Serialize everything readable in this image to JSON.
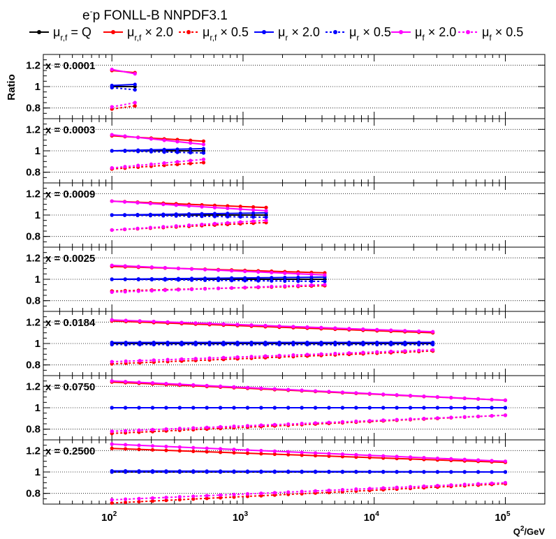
{
  "chart_data": {
    "type": "line",
    "title": "e",
    "title_sup": "-",
    "title_rest": "p FONLL-B NNPDF3.1",
    "ylabel": "Ratio",
    "xlabel": "Q",
    "xlabel_sup": "2",
    "xlabel_rest": "/GeV",
    "xscale": "log",
    "xlim": [
      30,
      200000
    ],
    "ylim": [
      0.7,
      1.3
    ],
    "grid": "y-dotted",
    "legend_position": "top",
    "x_ticks": [
      {
        "base": "10",
        "exp": "2",
        "value": 100
      },
      {
        "base": "10",
        "exp": "3",
        "value": 1000
      },
      {
        "base": "10",
        "exp": "4",
        "value": 10000
      },
      {
        "base": "10",
        "exp": "5",
        "value": 100000
      }
    ],
    "y_ticks": [
      {
        "label": "0.8",
        "value": 0.8
      },
      {
        "label": "1",
        "value": 1.0
      },
      {
        "label": "1.2",
        "value": 1.2
      }
    ],
    "legend": [
      {
        "sym": "μ",
        "sub": "r,f",
        "text": " = Q",
        "color": "#000000",
        "dash": "solid"
      },
      {
        "sym": "μ",
        "sub": "r,f",
        "text": " × 2.0",
        "color": "#ff0000",
        "dash": "solid"
      },
      {
        "sym": "μ",
        "sub": "r,f",
        "text": " × 0.5",
        "color": "#ff0000",
        "dash": "dotted"
      },
      {
        "sym": "μ",
        "sub": "r",
        "text": " × 2.0",
        "color": "#0000ff",
        "dash": "solid"
      },
      {
        "sym": "μ",
        "sub": "r",
        "text": " × 0.5",
        "color": "#0000ff",
        "dash": "dotted"
      },
      {
        "sym": "μ",
        "sub": "f",
        "text": " × 2.0",
        "color": "#ff00ff",
        "dash": "solid"
      },
      {
        "sym": "μ",
        "sub": "f",
        "text": " × 0.5",
        "color": "#ff00ff",
        "dash": "dotted"
      }
    ],
    "panels": [
      {
        "label": "x = 0.0001",
        "x_min": 100,
        "x_max": 150,
        "n_points": 2,
        "curves": {
          "central": [
            1.0,
            1.0
          ],
          "rf_x2": [
            1.15,
            1.13
          ],
          "rf_x05": [
            0.79,
            0.82
          ],
          "r_x2": [
            1.01,
            1.02
          ],
          "r_x05": [
            0.99,
            0.97
          ],
          "f_x2": [
            1.16,
            1.12
          ],
          "f_x05": [
            0.81,
            0.85
          ]
        }
      },
      {
        "label": "x = 0.0003",
        "x_min": 100,
        "x_max": 500,
        "n_points": 8,
        "curves": {
          "central": [
            1.0,
            1.0
          ],
          "rf_x2": [
            1.14,
            1.09
          ],
          "rf_x05": [
            0.83,
            0.89
          ],
          "r_x2": [
            1.0,
            1.02
          ],
          "r_x05": [
            1.0,
            0.98
          ],
          "f_x2": [
            1.15,
            1.06
          ],
          "f_x05": [
            0.84,
            0.92
          ]
        }
      },
      {
        "label": "x = 0.0009",
        "x_min": 100,
        "x_max": 1500,
        "n_points": 13,
        "curves": {
          "central": [
            1.0,
            1.0
          ],
          "rf_x2": [
            1.13,
            1.07
          ],
          "rf_x05": [
            0.86,
            0.93
          ],
          "r_x2": [
            1.0,
            1.02
          ],
          "r_x05": [
            1.0,
            0.98
          ],
          "f_x2": [
            1.13,
            1.04
          ],
          "f_x05": [
            0.86,
            0.95
          ]
        }
      },
      {
        "label": "x = 0.0025",
        "x_min": 100,
        "x_max": 4200,
        "n_points": 17,
        "curves": {
          "central": [
            1.0,
            1.0
          ],
          "rf_x2": [
            1.12,
            1.06
          ],
          "rf_x05": [
            0.89,
            0.94
          ],
          "r_x2": [
            1.0,
            1.02
          ],
          "r_x05": [
            1.0,
            0.98
          ],
          "f_x2": [
            1.13,
            1.04
          ],
          "f_x05": [
            0.88,
            0.95
          ]
        }
      },
      {
        "label": "x = 0.0184",
        "x_min": 100,
        "x_max": 28000,
        "n_points": 24,
        "curves": {
          "central": [
            1.0,
            1.0
          ],
          "rf_x2": [
            1.21,
            1.1
          ],
          "rf_x05": [
            0.81,
            0.93
          ],
          "r_x2": [
            1.01,
            1.01
          ],
          "r_x05": [
            0.99,
            0.99
          ],
          "f_x2": [
            1.22,
            1.11
          ],
          "f_x05": [
            0.83,
            0.94
          ]
        }
      },
      {
        "label": "x = 0.0750",
        "x_min": 100,
        "x_max": 100000,
        "n_points": 30,
        "curves": {
          "central": [
            1.0,
            1.0
          ],
          "rf_x2": [
            1.24,
            1.07
          ],
          "rf_x05": [
            0.76,
            0.93
          ],
          "r_x2": [
            1.0,
            1.0
          ],
          "r_x05": [
            1.0,
            1.0
          ],
          "f_x2": [
            1.25,
            1.07
          ],
          "f_x05": [
            0.78,
            0.93
          ]
        }
      },
      {
        "label": "x = 0.2500",
        "x_min": 100,
        "x_max": 100000,
        "n_points": 30,
        "curves": {
          "central": [
            1.0,
            1.0
          ],
          "rf_x2": [
            1.22,
            1.09
          ],
          "rf_x05": [
            0.71,
            0.89
          ],
          "r_x2": [
            1.01,
            1.0
          ],
          "r_x05": [
            1.0,
            1.0
          ],
          "f_x2": [
            1.26,
            1.1
          ],
          "f_x05": [
            0.74,
            0.9
          ]
        }
      }
    ]
  }
}
